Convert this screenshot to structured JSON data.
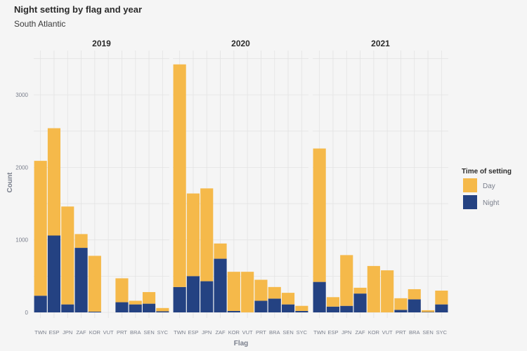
{
  "chart_data": {
    "type": "bar",
    "stacked": true,
    "title": "Night setting by flag and year",
    "subtitle": "South Atlantic",
    "xlabel": "Flag",
    "ylabel": "Count",
    "ylim": [
      0,
      3500
    ],
    "yticks": [
      0,
      1000,
      2000,
      3000
    ],
    "categories": [
      "TWN",
      "ESP",
      "JPN",
      "ZAF",
      "KOR",
      "VUT",
      "PRT",
      "BRA",
      "SEN",
      "SYC"
    ],
    "legend": {
      "title": "Time of setting",
      "position": "right",
      "entries": [
        {
          "label": "Day",
          "color": "#f5b94a"
        },
        {
          "label": "Night",
          "color": "#244282"
        }
      ]
    },
    "facets": [
      {
        "label": "2019",
        "series": [
          {
            "name": "Night",
            "values": [
              230,
              1060,
              110,
              890,
              10,
              0,
              140,
              110,
              120,
              15
            ]
          },
          {
            "name": "Day",
            "values": [
              1860,
              1480,
              1350,
              190,
              770,
              0,
              330,
              50,
              160,
              45
            ]
          }
        ]
      },
      {
        "label": "2020",
        "series": [
          {
            "name": "Night",
            "values": [
              350,
              500,
              430,
              740,
              20,
              0,
              160,
              190,
              110,
              20
            ]
          },
          {
            "name": "Day",
            "values": [
              3070,
              1140,
              1280,
              210,
              540,
              560,
              290,
              160,
              160,
              70
            ]
          }
        ]
      },
      {
        "label": "2021",
        "series": [
          {
            "name": "Night",
            "values": [
              420,
              80,
              90,
              260,
              0,
              0,
              35,
              180,
              5,
              110
            ]
          },
          {
            "name": "Day",
            "values": [
              1840,
              130,
              700,
              80,
              640,
              580,
              160,
              140,
              25,
              190
            ]
          }
        ]
      }
    ]
  }
}
